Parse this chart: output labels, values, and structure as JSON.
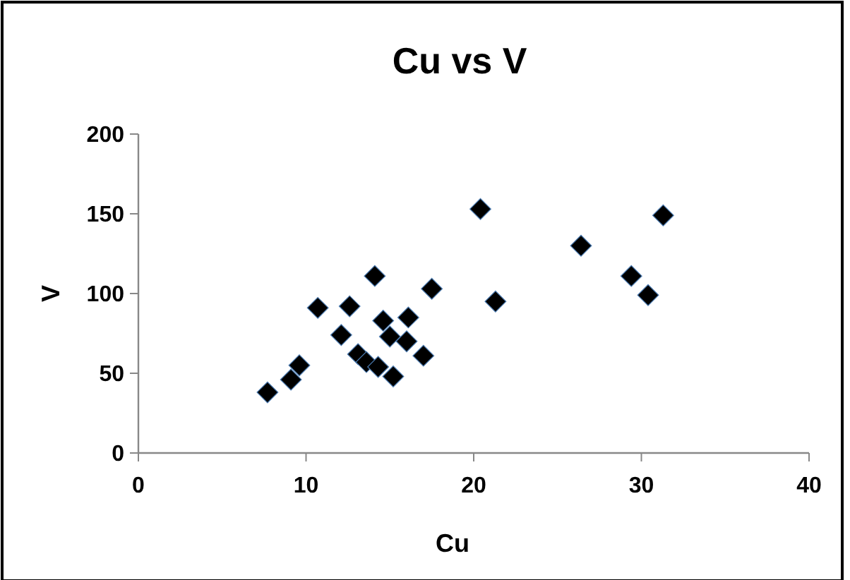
{
  "chart_data": {
    "type": "scatter",
    "title": "Cu vs V",
    "xlabel": "Cu",
    "ylabel": "V",
    "x": [
      7.7,
      9.1,
      9.6,
      10.7,
      12.1,
      12.6,
      13.1,
      13.6,
      14.3,
      14.1,
      14.6,
      15.0,
      15.2,
      16.1,
      16.0,
      17.0,
      17.5,
      20.4,
      21.3,
      26.4,
      29.4,
      30.4,
      31.3
    ],
    "values": [
      38,
      46,
      55,
      91,
      74,
      92,
      62,
      57,
      54,
      111,
      83,
      73,
      48,
      85,
      70,
      61,
      103,
      153,
      95,
      130,
      111,
      99,
      149
    ],
    "color": "#000000",
    "marker": "diamond",
    "xlim": [
      0,
      40
    ],
    "xticks": [
      0,
      10,
      20,
      30,
      40
    ],
    "ylim": [
      0,
      200
    ],
    "yticks": [
      0,
      50,
      100,
      150,
      200
    ],
    "grid": false
  }
}
